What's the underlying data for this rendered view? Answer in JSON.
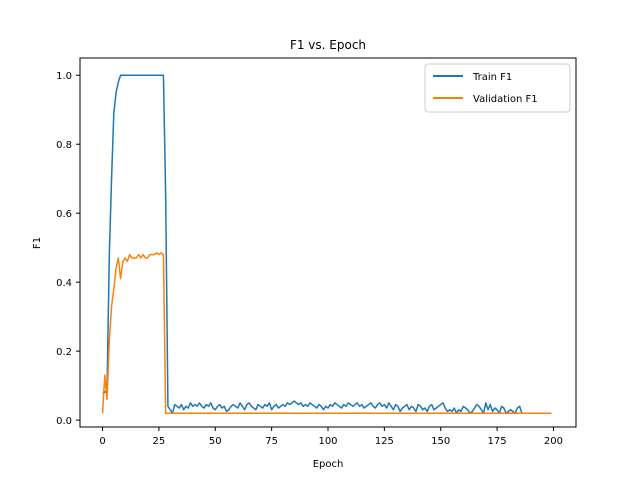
{
  "chart_data": {
    "type": "line",
    "title": "F1 vs. Epoch",
    "xlabel": "Epoch",
    "ylabel": "F1",
    "xlim": [
      -10,
      210
    ],
    "ylim": [
      -0.02,
      1.05
    ],
    "xticks": [
      0,
      25,
      50,
      75,
      100,
      125,
      150,
      175,
      200
    ],
    "yticks": [
      0.0,
      0.2,
      0.4,
      0.6,
      0.8,
      1.0
    ],
    "grid": false,
    "legend_position": "top-right",
    "series": [
      {
        "name": "Train F1",
        "color": "#1f77b4",
        "x": [
          0,
          1,
          2,
          3,
          4,
          5,
          6,
          7,
          8,
          9,
          10,
          11,
          12,
          13,
          14,
          15,
          16,
          17,
          18,
          19,
          20,
          21,
          22,
          23,
          24,
          25,
          26,
          27,
          28,
          29,
          30,
          31,
          32,
          33,
          34,
          35,
          36,
          37,
          38,
          39,
          40,
          41,
          42,
          43,
          44,
          45,
          46,
          47,
          48,
          49,
          50,
          51,
          52,
          53,
          54,
          55,
          56,
          57,
          58,
          59,
          60,
          61,
          62,
          63,
          64,
          65,
          66,
          67,
          68,
          69,
          70,
          71,
          72,
          73,
          74,
          75,
          76,
          77,
          78,
          79,
          80,
          81,
          82,
          83,
          84,
          85,
          86,
          87,
          88,
          89,
          90,
          91,
          92,
          93,
          94,
          95,
          96,
          97,
          98,
          99,
          100,
          101,
          102,
          103,
          104,
          105,
          106,
          107,
          108,
          109,
          110,
          111,
          112,
          113,
          114,
          115,
          116,
          117,
          118,
          119,
          120,
          121,
          122,
          123,
          124,
          125,
          126,
          127,
          128,
          129,
          130,
          131,
          132,
          133,
          134,
          135,
          136,
          137,
          138,
          139,
          140,
          141,
          142,
          143,
          144,
          145,
          146,
          147,
          148,
          149,
          150,
          151,
          152,
          153,
          154,
          155,
          156,
          157,
          158,
          159,
          160,
          161,
          162,
          163,
          164,
          165,
          166,
          167,
          168,
          169,
          170,
          171,
          172,
          173,
          174,
          175,
          176,
          177,
          178,
          179,
          180,
          181,
          182,
          183,
          184,
          185,
          186,
          187,
          188,
          189,
          190,
          191,
          192,
          193,
          194,
          195,
          196,
          197,
          198,
          199
        ],
        "y": [
          0.08,
          0.08,
          0.09,
          0.48,
          0.7,
          0.89,
          0.95,
          0.98,
          1.0,
          1.0,
          1.0,
          1.0,
          1.0,
          1.0,
          1.0,
          1.0,
          1.0,
          1.0,
          1.0,
          1.0,
          1.0,
          1.0,
          1.0,
          1.0,
          1.0,
          1.0,
          1.0,
          1.0,
          0.65,
          0.04,
          0.03,
          0.02,
          0.045,
          0.04,
          0.035,
          0.045,
          0.03,
          0.04,
          0.035,
          0.05,
          0.04,
          0.045,
          0.04,
          0.05,
          0.04,
          0.035,
          0.045,
          0.04,
          0.05,
          0.035,
          0.03,
          0.04,
          0.045,
          0.035,
          0.04,
          0.025,
          0.03,
          0.04,
          0.045,
          0.04,
          0.035,
          0.05,
          0.04,
          0.03,
          0.045,
          0.05,
          0.04,
          0.035,
          0.03,
          0.045,
          0.04,
          0.035,
          0.045,
          0.04,
          0.05,
          0.03,
          0.04,
          0.045,
          0.035,
          0.04,
          0.045,
          0.04,
          0.05,
          0.045,
          0.05,
          0.055,
          0.05,
          0.045,
          0.05,
          0.04,
          0.045,
          0.04,
          0.05,
          0.045,
          0.04,
          0.035,
          0.045,
          0.04,
          0.03,
          0.04,
          0.035,
          0.045,
          0.04,
          0.05,
          0.045,
          0.04,
          0.035,
          0.045,
          0.04,
          0.05,
          0.045,
          0.04,
          0.045,
          0.05,
          0.04,
          0.045,
          0.035,
          0.04,
          0.045,
          0.05,
          0.04,
          0.035,
          0.045,
          0.05,
          0.04,
          0.045,
          0.035,
          0.05,
          0.04,
          0.03,
          0.045,
          0.04,
          0.025,
          0.035,
          0.04,
          0.045,
          0.03,
          0.04,
          0.035,
          0.025,
          0.045,
          0.04,
          0.03,
          0.035,
          0.025,
          0.04,
          0.045,
          0.03,
          0.035,
          0.04,
          0.045,
          0.05,
          0.035,
          0.025,
          0.03,
          0.025,
          0.035,
          0.02,
          0.03,
          0.025,
          0.04,
          0.035,
          0.03,
          0.02,
          0.025,
          0.035,
          0.045,
          0.04,
          0.03,
          0.02,
          0.05,
          0.03,
          0.045,
          0.025,
          0.035,
          0.03,
          0.02,
          0.04,
          0.035,
          0.02,
          0.025,
          0.03,
          0.025,
          0.02,
          0.035,
          0.04,
          0.02,
          0.02,
          0.02,
          0.02,
          0.02,
          0.02,
          0.02,
          0.02,
          0.02,
          0.02,
          0.02,
          0.02,
          0.02,
          0.02
        ]
      },
      {
        "name": "Validation F1",
        "color": "#ff7f0e",
        "x": [
          0,
          1,
          2,
          3,
          4,
          5,
          6,
          7,
          8,
          9,
          10,
          11,
          12,
          13,
          14,
          15,
          16,
          17,
          18,
          19,
          20,
          21,
          22,
          23,
          24,
          25,
          26,
          27,
          28,
          29,
          30,
          40,
          60,
          80,
          100,
          120,
          140,
          160,
          180,
          190,
          199
        ],
        "y": [
          0.02,
          0.13,
          0.06,
          0.23,
          0.33,
          0.38,
          0.44,
          0.47,
          0.41,
          0.46,
          0.47,
          0.46,
          0.48,
          0.47,
          0.47,
          0.47,
          0.48,
          0.47,
          0.48,
          0.47,
          0.47,
          0.48,
          0.48,
          0.48,
          0.485,
          0.48,
          0.485,
          0.48,
          0.02,
          0.02,
          0.02,
          0.02,
          0.02,
          0.02,
          0.02,
          0.02,
          0.02,
          0.02,
          0.02,
          0.02,
          0.02
        ]
      }
    ]
  }
}
